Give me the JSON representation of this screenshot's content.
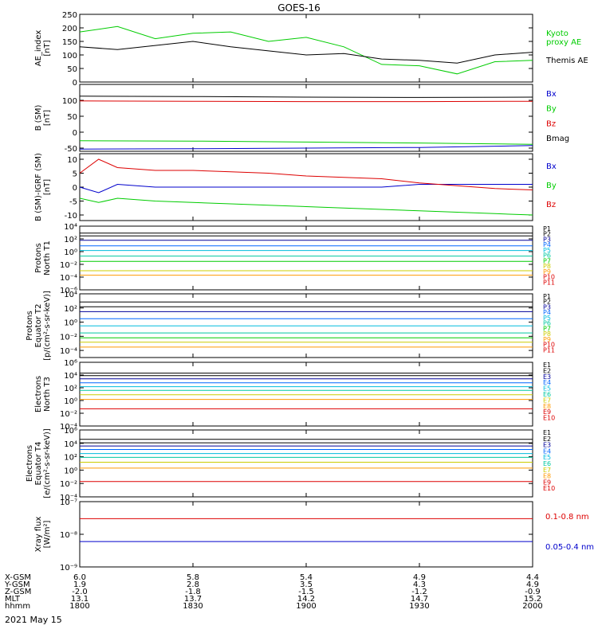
{
  "title": "GOES-16",
  "date": "2021 May 15",
  "colors": {
    "black": "#000000",
    "green": "#00cc00",
    "red": "#dd0000",
    "blue": "#0000cc",
    "cyan": "#00bbdd",
    "teal": "#00c8a0",
    "yellow": "#cccc00",
    "orange": "#ff9900"
  },
  "ephemeris": {
    "labels": [
      "X-GSM",
      "Y-GSM",
      "Z-GSM",
      "MLT",
      "hhmm"
    ],
    "columns": [
      {
        "x-gsm": "6.0",
        "y-gsm": "1.9",
        "z-gsm": "-2.0",
        "mlt": "13.1",
        "hhmm": "1800"
      },
      {
        "x-gsm": "5.8",
        "y-gsm": "2.8",
        "z-gsm": "-1.8",
        "mlt": "13.7",
        "hhmm": "1830"
      },
      {
        "x-gsm": "5.4",
        "y-gsm": "3.5",
        "z-gsm": "-1.5",
        "mlt": "14.2",
        "hhmm": "1900"
      },
      {
        "x-gsm": "4.9",
        "y-gsm": "4.3",
        "z-gsm": "-1.2",
        "mlt": "14.7",
        "hhmm": "1930"
      },
      {
        "x-gsm": "4.4",
        "y-gsm": "4.9",
        "z-gsm": "-0.9",
        "mlt": "15.2",
        "hhmm": "2000"
      }
    ]
  },
  "chart_data": [
    {
      "type": "line",
      "ylabel": "AE_index\n[nT]",
      "ylim": [
        0,
        250
      ],
      "yscale": "linear",
      "ticks": [
        0,
        50,
        100,
        150,
        200,
        250
      ],
      "tick_labels": [
        "0",
        "50",
        "100",
        "150",
        "200",
        "250"
      ],
      "x": [
        1800,
        1810,
        1820,
        1830,
        1840,
        1850,
        1900,
        1910,
        1920,
        1930,
        1940,
        1950,
        2000
      ],
      "series": [
        {
          "name": "Kyoto\nproxy AE",
          "color": "#00cc00",
          "values": [
            185,
            205,
            160,
            180,
            185,
            150,
            165,
            130,
            65,
            60,
            30,
            75,
            80
          ]
        },
        {
          "name": "Themis AE",
          "color": "#000000",
          "values": [
            130,
            120,
            135,
            150,
            130,
            115,
            100,
            105,
            85,
            80,
            70,
            100,
            110
          ]
        }
      ]
    },
    {
      "type": "line",
      "ylabel": "B (SM)\n[nT]",
      "ylim": [
        -60,
        150
      ],
      "yscale": "linear",
      "ticks": [
        -50,
        0,
        50,
        100
      ],
      "tick_labels": [
        "-50",
        "0",
        "50",
        "100"
      ],
      "x": [
        1800,
        1830,
        1900,
        1930,
        2000
      ],
      "series": [
        {
          "name": "Bx",
          "color": "#0000cc",
          "values": [
            -53,
            -52,
            -50,
            -48,
            -42
          ]
        },
        {
          "name": "By",
          "color": "#00cc00",
          "values": [
            -27,
            -28,
            -31,
            -34,
            -38
          ]
        },
        {
          "name": "Bz",
          "color": "#dd0000",
          "values": [
            98,
            97,
            96,
            96,
            97
          ]
        },
        {
          "name": "Bmag",
          "color": "#000000",
          "values": [
            113,
            112,
            110,
            109,
            110
          ]
        }
      ]
    },
    {
      "type": "line",
      "ylabel": "B (SM)-IGRF (SM)\n[nT]",
      "ylim": [
        -12,
        12
      ],
      "yscale": "linear",
      "ticks": [
        -10,
        -5,
        0,
        5,
        10
      ],
      "tick_labels": [
        "-10",
        "-5",
        "0",
        "5",
        "10"
      ],
      "x": [
        1800,
        1805,
        1810,
        1820,
        1830,
        1840,
        1850,
        1900,
        1910,
        1920,
        1930,
        1940,
        1950,
        2000
      ],
      "series": [
        {
          "name": "Bx",
          "color": "#0000cc",
          "values": [
            0,
            -2,
            1,
            0,
            0,
            0,
            0,
            0,
            0,
            0,
            1,
            1,
            1,
            1
          ]
        },
        {
          "name": "By",
          "color": "#00cc00",
          "values": [
            -4,
            -5.5,
            -4,
            -5,
            -5.5,
            -6,
            -6.5,
            -7,
            -7.5,
            -8,
            -8.5,
            -9,
            -9.5,
            -10
          ]
        },
        {
          "name": "Bz",
          "color": "#dd0000",
          "values": [
            5,
            10,
            7,
            6,
            6,
            5.5,
            5,
            4,
            3.5,
            3,
            1.5,
            0.5,
            -0.5,
            -1
          ]
        }
      ]
    },
    {
      "type": "line",
      "ylabel": "Protons\nNorth T1",
      "ylim": [
        1e-06,
        10000.0
      ],
      "yscale": "log",
      "ticks": [
        1e-06,
        0.0001,
        0.01,
        1,
        100.0,
        10000.0
      ],
      "tick_labels": [
        "10⁻⁶",
        "10⁻⁴",
        "10⁻²",
        "10⁰",
        "10²",
        "10⁴"
      ],
      "x": [
        1800,
        2000
      ],
      "series": [
        {
          "name": "P1",
          "color": "#000000",
          "values": [
            800,
            800
          ]
        },
        {
          "name": "P2",
          "color": "#000000",
          "values": [
            300,
            300
          ]
        },
        {
          "name": "P3",
          "color": "#000099",
          "values": [
            60,
            60
          ]
        },
        {
          "name": "P4",
          "color": "#0066ff",
          "values": [
            8,
            8
          ]
        },
        {
          "name": "P5",
          "color": "#00bbdd",
          "values": [
            1.5,
            1.5
          ]
        },
        {
          "name": "P6",
          "color": "#00c8a0",
          "values": [
            0.2,
            0.2
          ]
        },
        {
          "name": "P7",
          "color": "#00cc00",
          "values": [
            0.03,
            0.03
          ]
        },
        {
          "name": "P8",
          "color": "#cccc00",
          "values": [
            0.001,
            0.001
          ]
        },
        {
          "name": "P9",
          "color": "#ff9900",
          "values": [
            0.0002,
            0.0002
          ]
        },
        {
          "name": "P10",
          "color": "#dd0000",
          "values": [
            null,
            null
          ]
        },
        {
          "name": "P11",
          "color": "#dd0000",
          "values": [
            null,
            null
          ]
        }
      ]
    },
    {
      "type": "line",
      "ylabel": "Protons\nEquator T2\n[p/(cm²-s-sr-keV)]",
      "ylim": [
        1e-05,
        10000.0
      ],
      "yscale": "log",
      "ticks": [
        0.0001,
        0.01,
        1,
        100.0,
        10000.0
      ],
      "tick_labels": [
        "10⁻⁴",
        "10⁻²",
        "10⁰",
        "10²",
        "10⁴"
      ],
      "x": [
        1800,
        2000
      ],
      "series": [
        {
          "name": "P1",
          "color": "#000000",
          "values": [
            700,
            700
          ]
        },
        {
          "name": "P2",
          "color": "#000000",
          "values": [
            150,
            150
          ]
        },
        {
          "name": "P3",
          "color": "#000099",
          "values": [
            30,
            30
          ]
        },
        {
          "name": "P4",
          "color": "#0066ff",
          "values": [
            3,
            3
          ]
        },
        {
          "name": "P5",
          "color": "#00bbdd",
          "values": [
            0.3,
            0.3
          ]
        },
        {
          "name": "P6",
          "color": "#00c8a0",
          "values": [
            0.03,
            0.03
          ]
        },
        {
          "name": "P7",
          "color": "#00cc00",
          "values": [
            0.006,
            0.006
          ]
        },
        {
          "name": "P8",
          "color": "#cccc00",
          "values": [
            0.0015,
            0.0015
          ]
        },
        {
          "name": "P9",
          "color": "#ff9900",
          "values": [
            0.0003,
            0.0003
          ]
        },
        {
          "name": "P10",
          "color": "#dd0000",
          "values": [
            null,
            null
          ]
        },
        {
          "name": "P11",
          "color": "#dd0000",
          "values": [
            null,
            null
          ]
        }
      ]
    },
    {
      "type": "line",
      "ylabel": "Electrons\nNorth T3",
      "ylim": [
        0.0001,
        1000000.0
      ],
      "yscale": "log",
      "ticks": [
        0.0001,
        0.01,
        1,
        100.0,
        10000.0,
        1000000.0
      ],
      "tick_labels": [
        "10⁻⁴",
        "10⁻²",
        "10⁰",
        "10²",
        "10⁴",
        "10⁶"
      ],
      "x": [
        1800,
        2000
      ],
      "series": [
        {
          "name": "E1",
          "color": "#000000",
          "values": [
            20000,
            20000
          ]
        },
        {
          "name": "E2",
          "color": "#000000",
          "values": [
            8000,
            8000
          ]
        },
        {
          "name": "E3",
          "color": "#000099",
          "values": [
            2500,
            2500
          ]
        },
        {
          "name": "E4",
          "color": "#0066ff",
          "values": [
            600,
            600
          ]
        },
        {
          "name": "E5",
          "color": "#00bbdd",
          "values": [
            150,
            150
          ]
        },
        {
          "name": "E6",
          "color": "#00c8a0",
          "values": [
            40,
            40
          ]
        },
        {
          "name": "E7",
          "color": "#cccc00",
          "values": [
            8,
            8
          ]
        },
        {
          "name": "E8",
          "color": "#ff9900",
          "values": [
            1.5,
            1.5
          ]
        },
        {
          "name": "E9",
          "color": "#dd0000",
          "values": [
            0.05,
            0.05
          ]
        },
        {
          "name": "E10",
          "color": "#dd0000",
          "values": [
            null,
            null
          ]
        }
      ]
    },
    {
      "type": "line",
      "ylabel": "Electrons\nEquator T4\n[e/(cm²-s-sr-keV)]",
      "ylim": [
        0.0001,
        1000000.0
      ],
      "yscale": "log",
      "ticks": [
        0.0001,
        0.01,
        1,
        100.0,
        10000.0,
        1000000.0
      ],
      "tick_labels": [
        "10⁻⁴",
        "10⁻²",
        "10⁰",
        "10²",
        "10⁴",
        "10⁶"
      ],
      "x": [
        1800,
        2000
      ],
      "series": [
        {
          "name": "E1",
          "color": "#000000",
          "values": [
            40000,
            40000
          ]
        },
        {
          "name": "E2",
          "color": "#000000",
          "values": [
            12000,
            12000
          ]
        },
        {
          "name": "E3",
          "color": "#000099",
          "values": [
            4000,
            4000
          ]
        },
        {
          "name": "E4",
          "color": "#0066ff",
          "values": [
            1200,
            1200
          ]
        },
        {
          "name": "E5",
          "color": "#00bbdd",
          "values": [
            300,
            300
          ]
        },
        {
          "name": "E6",
          "color": "#00c8a0",
          "values": [
            80,
            80
          ]
        },
        {
          "name": "E7",
          "color": "#cccc00",
          "values": [
            15,
            15
          ]
        },
        {
          "name": "E8",
          "color": "#ff9900",
          "values": [
            2,
            2
          ]
        },
        {
          "name": "E9",
          "color": "#dd0000",
          "values": [
            0.02,
            0.02
          ]
        },
        {
          "name": "E10",
          "color": "#dd0000",
          "values": [
            null,
            null
          ]
        }
      ]
    },
    {
      "type": "line",
      "ylabel": "Xray flux\n[W/m²]",
      "ylim": [
        1e-09,
        1e-07
      ],
      "yscale": "log",
      "ticks": [
        1e-09,
        1e-08,
        1e-07
      ],
      "tick_labels": [
        "10⁻⁹",
        "10⁻⁸",
        "10⁻⁷"
      ],
      "x": [
        1800,
        2000
      ],
      "series": [
        {
          "name": "0.1-0.8 nm",
          "color": "#dd0000",
          "values": [
            3e-08,
            3e-08
          ]
        },
        {
          "name": "0.05-0.4 nm",
          "color": "#0000cc",
          "values": [
            6e-09,
            6e-09
          ]
        }
      ]
    }
  ]
}
